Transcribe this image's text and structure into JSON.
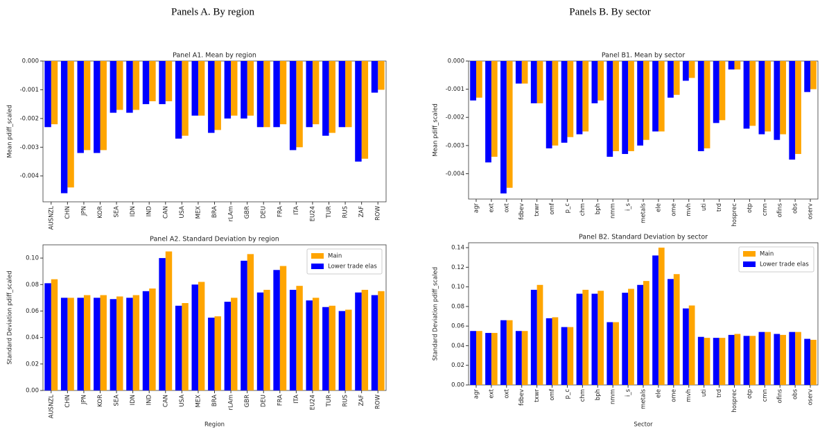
{
  "headings": [
    "Panels A. By region",
    "Panels B. By sector"
  ],
  "chart_data": [
    {
      "type": "bar",
      "title": "Panel A1. Mean by region",
      "y_label": "Mean pdiff_scaled",
      "categories": [
        "AUSNZL",
        "CHN",
        "JPN",
        "KOR",
        "SEA",
        "IDN",
        "IND",
        "CAN",
        "USA",
        "MEX",
        "BRA",
        "rLAm",
        "GBR",
        "DEU",
        "FRA",
        "ITA",
        "EU24",
        "TUR",
        "RUS",
        "ZAF",
        "ROW"
      ],
      "series": [
        {
          "color": "#FFA500",
          "values": [
            -0.0022,
            -0.0044,
            -0.0031,
            -0.0031,
            -0.0017,
            -0.0017,
            -0.0014,
            -0.0014,
            -0.0026,
            -0.0019,
            -0.0024,
            -0.0019,
            -0.0019,
            -0.0023,
            -0.0022,
            -0.003,
            -0.0022,
            -0.0025,
            -0.0023,
            -0.0034,
            -0.001
          ]
        },
        {
          "color": "#0000FF",
          "values": [
            -0.0023,
            -0.0046,
            -0.0032,
            -0.0032,
            -0.0018,
            -0.0018,
            -0.0015,
            -0.0015,
            -0.0027,
            -0.0019,
            -0.0025,
            -0.002,
            -0.002,
            -0.0023,
            -0.0023,
            -0.0031,
            -0.0023,
            -0.0026,
            -0.0023,
            -0.0035,
            -0.0011
          ]
        }
      ],
      "ylim": [
        -0.0049,
        0
      ],
      "yticks": [
        {
          "value": 0,
          "label": "0.000"
        },
        {
          "value": -0.001,
          "label": "-0.001"
        },
        {
          "value": -0.002,
          "label": "-0.002"
        },
        {
          "value": -0.003,
          "label": "-0.003"
        },
        {
          "value": -0.004,
          "label": "-0.004"
        }
      ]
    },
    {
      "type": "bar",
      "title": "Panel A2. Standard Deviation by region",
      "x_label": "Region",
      "y_label": "Standard Deviation pdiff_scaled",
      "categories": [
        "AUSNZL",
        "CHN",
        "JPN",
        "KOR",
        "SEA",
        "IDN",
        "IND",
        "CAN",
        "USA",
        "MEX",
        "BRA",
        "rLAm",
        "GBR",
        "DEU",
        "FRA",
        "ITA",
        "EU24",
        "TUR",
        "RUS",
        "ZAF",
        "ROW"
      ],
      "series": [
        {
          "name": "Main",
          "color": "#FFA500",
          "values": [
            0.084,
            0.07,
            0.072,
            0.072,
            0.071,
            0.072,
            0.077,
            0.105,
            0.066,
            0.082,
            0.056,
            0.07,
            0.103,
            0.076,
            0.094,
            0.079,
            0.07,
            0.064,
            0.061,
            0.076,
            0.075
          ]
        },
        {
          "name": "Lower trade elas",
          "color": "#0000FF",
          "values": [
            0.081,
            0.07,
            0.07,
            0.07,
            0.069,
            0.07,
            0.075,
            0.1,
            0.064,
            0.08,
            0.055,
            0.067,
            0.098,
            0.074,
            0.091,
            0.076,
            0.068,
            0.063,
            0.06,
            0.074,
            0.072
          ]
        }
      ],
      "ylim": [
        0,
        0.11
      ],
      "yticks": [
        {
          "value": 0,
          "label": "0.00"
        },
        {
          "value": 0.02,
          "label": "0.02"
        },
        {
          "value": 0.04,
          "label": "0.04"
        },
        {
          "value": 0.06,
          "label": "0.06"
        },
        {
          "value": 0.08,
          "label": "0.08"
        },
        {
          "value": 0.1,
          "label": "0.10"
        }
      ],
      "legend": "upper right"
    },
    {
      "type": "bar",
      "title": "Panel B1. Mean by sector",
      "y_label": "Mean pdiff_scaled",
      "categories": [
        "agr",
        "ext",
        "oxt",
        "fdbev",
        "txwr",
        "omf",
        "p_c",
        "chm",
        "bph",
        "nmm",
        "i_s",
        "metals",
        "ele",
        "ome",
        "mvh",
        "uti",
        "trd",
        "hosprec",
        "otp",
        "cmn",
        "ofins",
        "obs",
        "oserv"
      ],
      "series": [
        {
          "color": "#FFA500",
          "values": [
            -0.0013,
            -0.0034,
            -0.0045,
            -0.0008,
            -0.0015,
            -0.003,
            -0.0027,
            -0.0025,
            -0.0014,
            -0.0032,
            -0.0032,
            -0.0028,
            -0.0025,
            -0.0012,
            -0.0006,
            -0.0031,
            -0.0021,
            -0.0003,
            -0.0023,
            -0.0025,
            -0.0026,
            -0.0033,
            -0.001
          ]
        },
        {
          "color": "#0000FF",
          "values": [
            -0.0014,
            -0.0036,
            -0.0047,
            -0.0008,
            -0.0015,
            -0.0031,
            -0.0029,
            -0.0026,
            -0.0015,
            -0.0034,
            -0.0033,
            -0.003,
            -0.0025,
            -0.0013,
            -0.0007,
            -0.0032,
            -0.0022,
            -0.0003,
            -0.0024,
            -0.0026,
            -0.0028,
            -0.0035,
            -0.0011
          ]
        }
      ],
      "ylim": [
        -0.0049,
        0
      ],
      "yticks": [
        {
          "value": 0,
          "label": "0.000"
        },
        {
          "value": -0.001,
          "label": "-0.001"
        },
        {
          "value": -0.002,
          "label": "-0.002"
        },
        {
          "value": -0.003,
          "label": "-0.003"
        },
        {
          "value": -0.004,
          "label": "-0.004"
        }
      ]
    },
    {
      "type": "bar",
      "title": "Panel B2. Standard Deviation by sector",
      "x_label": "Sector",
      "y_label": "Standard Deviation pdiff_scaled",
      "categories": [
        "agr",
        "ext",
        "oxt",
        "fdbev",
        "txwr",
        "omf",
        "p_c",
        "chm",
        "bph",
        "nmm",
        "i_s",
        "metals",
        "ele",
        "ome",
        "mvh",
        "uti",
        "trd",
        "hosprec",
        "otp",
        "cmn",
        "ofins",
        "obs",
        "oserv"
      ],
      "series": [
        {
          "name": "Main",
          "color": "#FFA500",
          "values": [
            0.055,
            0.053,
            0.066,
            0.055,
            0.102,
            0.069,
            0.059,
            0.097,
            0.096,
            0.064,
            0.098,
            0.106,
            0.14,
            0.113,
            0.081,
            0.048,
            0.048,
            0.052,
            0.05,
            0.054,
            0.051,
            0.054,
            0.046
          ]
        },
        {
          "name": "Lower trade elas",
          "color": "#0000FF",
          "values": [
            0.055,
            0.053,
            0.066,
            0.055,
            0.097,
            0.068,
            0.059,
            0.093,
            0.093,
            0.064,
            0.094,
            0.102,
            0.132,
            0.108,
            0.078,
            0.049,
            0.048,
            0.051,
            0.05,
            0.054,
            0.052,
            0.054,
            0.047
          ]
        }
      ],
      "ylim": [
        0,
        0.145
      ],
      "yticks": [
        {
          "value": 0,
          "label": "0.00"
        },
        {
          "value": 0.02,
          "label": "0.02"
        },
        {
          "value": 0.04,
          "label": "0.04"
        },
        {
          "value": 0.06,
          "label": "0.06"
        },
        {
          "value": 0.08,
          "label": "0.08"
        },
        {
          "value": 0.1,
          "label": "0.10"
        },
        {
          "value": 0.12,
          "label": "0.12"
        },
        {
          "value": 0.14,
          "label": "0.14"
        }
      ],
      "legend": "upper right"
    }
  ]
}
